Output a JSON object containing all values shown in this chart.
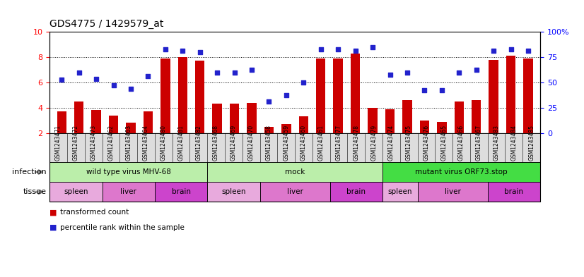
{
  "title": "GDS4775 / 1429579_at",
  "samples": [
    "GSM1243471",
    "GSM1243472",
    "GSM1243473",
    "GSM1243462",
    "GSM1243463",
    "GSM1243464",
    "GSM1243480",
    "GSM1243481",
    "GSM1243482",
    "GSM1243468",
    "GSM1243469",
    "GSM1243470",
    "GSM1243458",
    "GSM1243459",
    "GSM1243460",
    "GSM1243461",
    "GSM1243477",
    "GSM1243478",
    "GSM1243479",
    "GSM1243474",
    "GSM1243475",
    "GSM1243476",
    "GSM1243465",
    "GSM1243466",
    "GSM1243467",
    "GSM1243483",
    "GSM1243484",
    "GSM1243485"
  ],
  "bar_values": [
    3.7,
    4.5,
    3.8,
    3.4,
    2.8,
    3.7,
    7.9,
    8.0,
    7.7,
    4.3,
    4.3,
    4.4,
    2.5,
    2.7,
    3.3,
    7.9,
    7.9,
    8.3,
    4.0,
    3.9,
    4.6,
    3.0,
    2.9,
    4.5,
    4.6,
    7.8,
    8.1,
    7.9
  ],
  "scatter_values": [
    6.2,
    6.8,
    6.3,
    5.8,
    5.5,
    6.5,
    8.6,
    8.5,
    8.4,
    6.8,
    6.8,
    7.0,
    4.5,
    5.0,
    6.0,
    8.6,
    8.6,
    8.5,
    8.8,
    6.6,
    6.8,
    5.4,
    5.4,
    6.8,
    7.0,
    8.5,
    8.6,
    8.5
  ],
  "ylim_left": [
    2,
    10
  ],
  "ylim_right": [
    0,
    100
  ],
  "yticks_left": [
    2,
    4,
    6,
    8,
    10
  ],
  "yticks_right": [
    0,
    25,
    50,
    75,
    100
  ],
  "bar_color": "#cc0000",
  "scatter_color": "#2222cc",
  "inf_groups": [
    {
      "label": "wild type virus MHV-68",
      "start": 0,
      "end": 9,
      "color": "#bbeeaa"
    },
    {
      "label": "mock",
      "start": 9,
      "end": 19,
      "color": "#bbeeaa"
    },
    {
      "label": "mutant virus ORF73.stop",
      "start": 19,
      "end": 28,
      "color": "#44dd44"
    }
  ],
  "tis_groups": [
    {
      "label": "spleen",
      "start": 0,
      "end": 3,
      "color": "#e8aadd"
    },
    {
      "label": "liver",
      "start": 3,
      "end": 6,
      "color": "#dd77cc"
    },
    {
      "label": "brain",
      "start": 6,
      "end": 9,
      "color": "#cc44cc"
    },
    {
      "label": "spleen",
      "start": 9,
      "end": 12,
      "color": "#e8aadd"
    },
    {
      "label": "liver",
      "start": 12,
      "end": 16,
      "color": "#dd77cc"
    },
    {
      "label": "brain",
      "start": 16,
      "end": 19,
      "color": "#cc44cc"
    },
    {
      "label": "spleen",
      "start": 19,
      "end": 21,
      "color": "#e8aadd"
    },
    {
      "label": "liver",
      "start": 21,
      "end": 25,
      "color": "#dd77cc"
    },
    {
      "label": "brain",
      "start": 25,
      "end": 28,
      "color": "#cc44cc"
    }
  ],
  "infection_label": "infection",
  "tissue_label": "tissue",
  "legend_bar": "transformed count",
  "legend_scatter": "percentile rank within the sample",
  "grid_values": [
    4,
    6,
    8
  ],
  "background_color": "#ffffff",
  "tick_label_bg": "#dddddd"
}
